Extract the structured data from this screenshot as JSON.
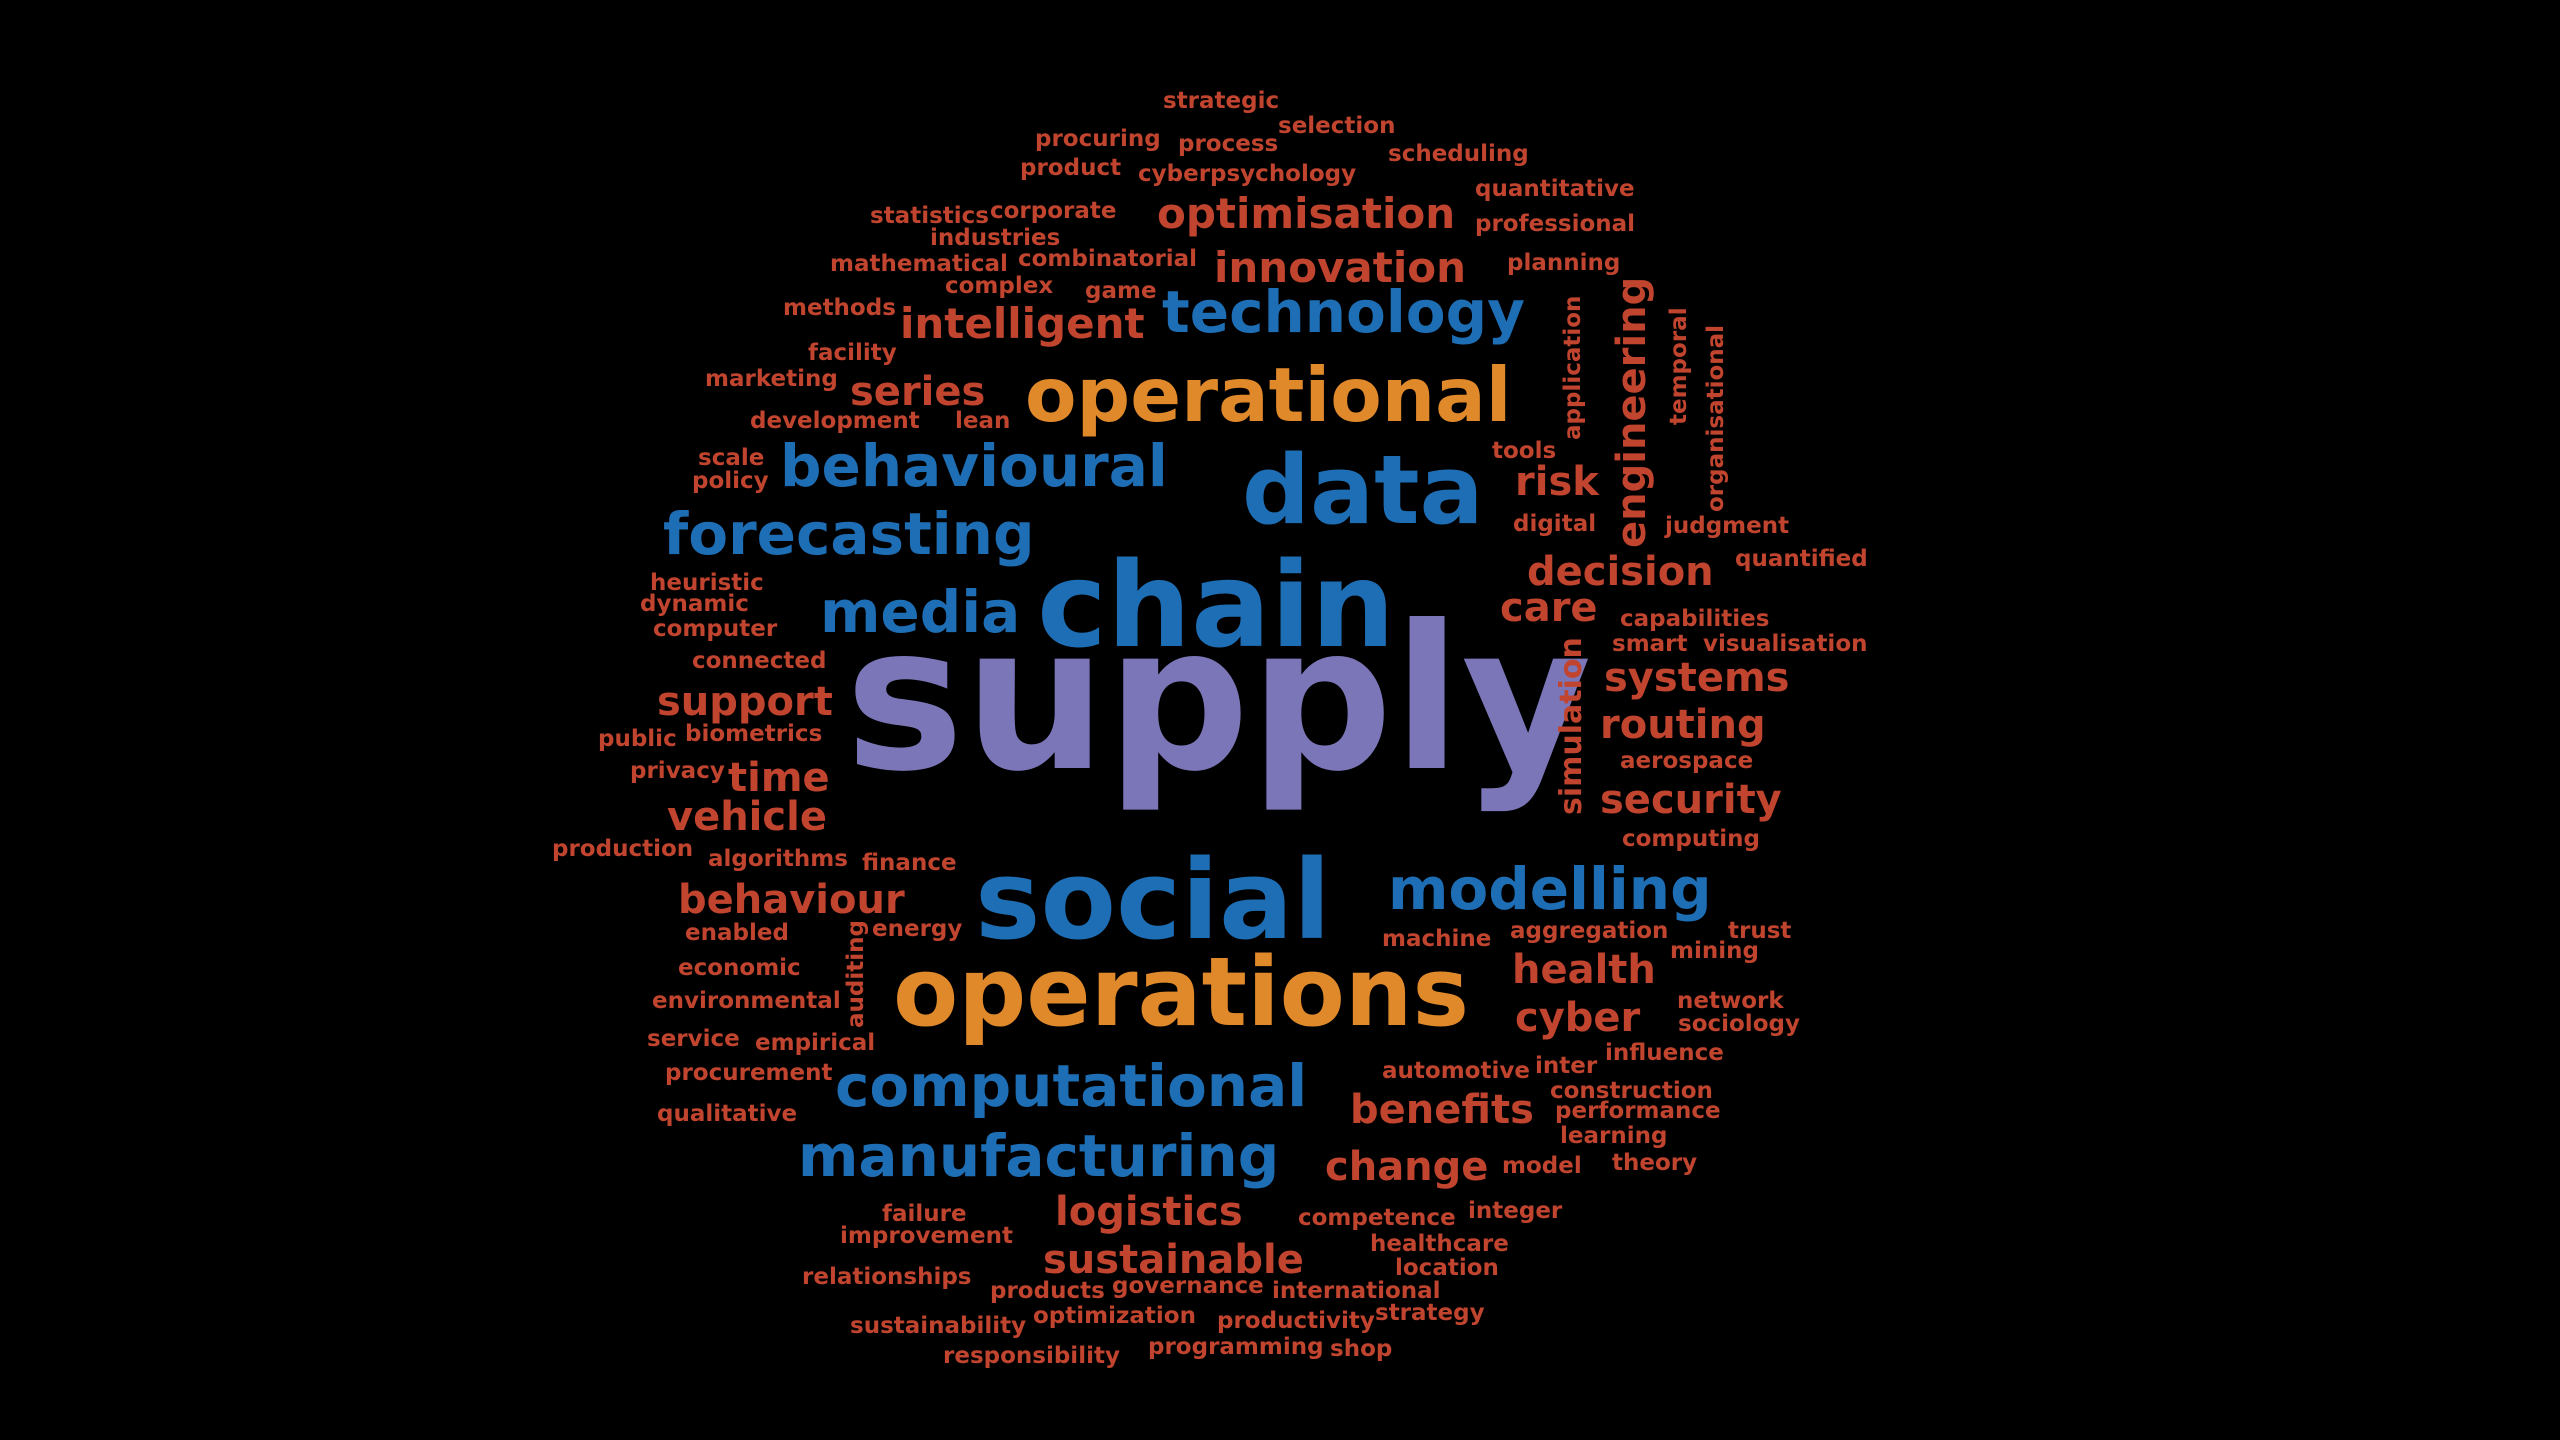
{
  "colors": {
    "background": "#000000",
    "lavender": "#7b76b8",
    "blue": "#1e6eb5",
    "orange": "#e0892b",
    "red": "#c1442f"
  },
  "words": [
    "supply",
    "chain",
    "social",
    "operations",
    "data",
    "operational",
    "technology",
    "behavioural",
    "forecasting",
    "media",
    "computational",
    "manufacturing",
    "modelling",
    "optimisation",
    "innovation",
    "intelligent",
    "series",
    "risk",
    "decision",
    "care",
    "systems",
    "routing",
    "security",
    "health",
    "cyber",
    "benefits",
    "change",
    "logistics",
    "sustainable",
    "support",
    "time",
    "vehicle",
    "behaviour",
    "engineering",
    "simulation",
    "strategic",
    "procuring",
    "process",
    "selection",
    "product",
    "cyberpsychology",
    "scheduling",
    "quantitative",
    "professional",
    "planning",
    "statistics",
    "corporate",
    "industries",
    "mathematical",
    "combinatorial",
    "complex",
    "game",
    "methods",
    "facility",
    "marketing",
    "development",
    "lean",
    "scale",
    "policy",
    "tools",
    "application",
    "temporal",
    "organisational",
    "digital",
    "judgment",
    "quantified",
    "heuristic",
    "dynamic",
    "computer",
    "connected",
    "capabilities",
    "smart",
    "visualisation",
    "public",
    "biometrics",
    "privacy",
    "aerospace",
    "production",
    "algorithms",
    "finance",
    "computing",
    "enabled",
    "energy",
    "auditing",
    "machine",
    "aggregation",
    "trust",
    "mining",
    "economic",
    "environmental",
    "network",
    "sociology",
    "service",
    "empirical",
    "influence",
    "inter",
    "procurement",
    "automotive",
    "construction",
    "performance",
    "qualitative",
    "learning",
    "model",
    "theory",
    "failure",
    "integer",
    "competence",
    "improvement",
    "healthcare",
    "location",
    "relationships",
    "products",
    "governance",
    "international",
    "optimization",
    "strategy",
    "sustainability",
    "productivity",
    "programming",
    "shop",
    "responsibility"
  ]
}
